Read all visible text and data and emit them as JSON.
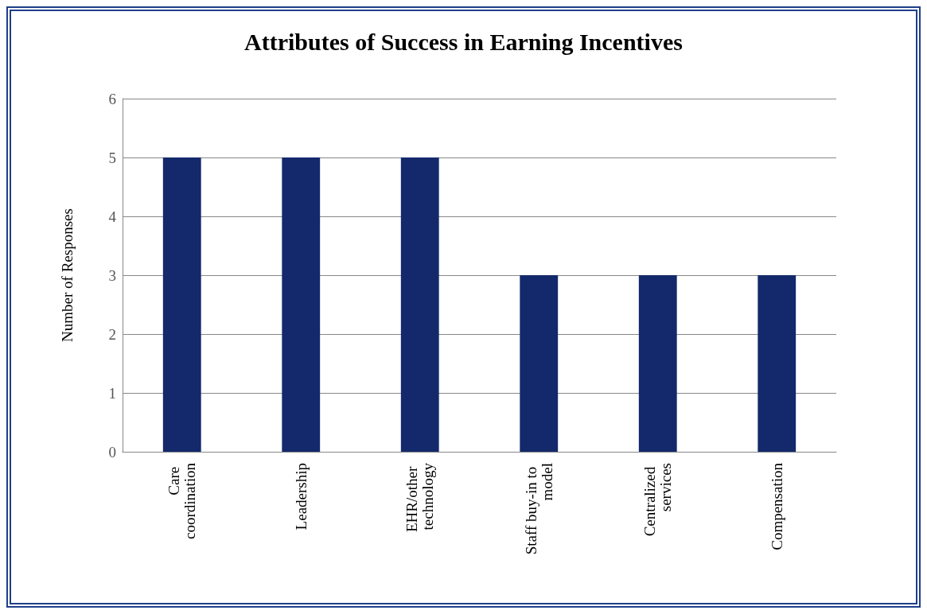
{
  "chart_data": {
    "type": "bar",
    "title": "Attributes of Success in Earning Incentives",
    "ylabel": "Number of Responses",
    "categories": [
      "Care coordination",
      "Leadership",
      "EHR/other technology",
      "Staff buy-in to model",
      "Centralized services",
      "Compensation"
    ],
    "values": [
      5,
      5,
      5,
      3,
      3,
      3
    ],
    "color": "#13296b",
    "ylim": [
      0,
      6
    ],
    "yticks": [
      0,
      1,
      2,
      3,
      4,
      5,
      6
    ],
    "grid": "y"
  }
}
